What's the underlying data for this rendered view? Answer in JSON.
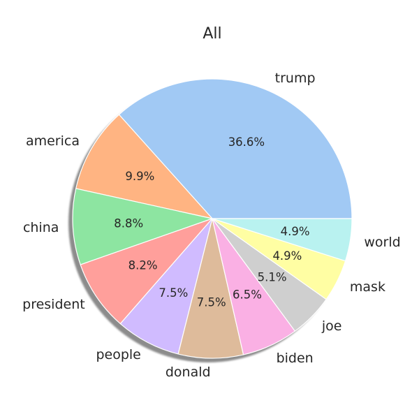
{
  "chart_data": {
    "type": "pie",
    "title": "All",
    "shadow": true,
    "start_angle": "0deg (east), counter-clockwise",
    "slices": [
      {
        "label": "trump",
        "value": 36.6,
        "pct_label": "36.6%",
        "color": "#a1c9f4"
      },
      {
        "label": "america",
        "value": 9.9,
        "pct_label": "9.9%",
        "color": "#ffb482"
      },
      {
        "label": "china",
        "value": 8.8,
        "pct_label": "8.8%",
        "color": "#8de5a1"
      },
      {
        "label": "president",
        "value": 8.2,
        "pct_label": "8.2%",
        "color": "#ff9f9b"
      },
      {
        "label": "people",
        "value": 7.5,
        "pct_label": "7.5%",
        "color": "#d0bbff"
      },
      {
        "label": "donald",
        "value": 7.5,
        "pct_label": "7.5%",
        "color": "#debb9b"
      },
      {
        "label": "biden",
        "value": 6.5,
        "pct_label": "6.5%",
        "color": "#fab0e4"
      },
      {
        "label": "joe",
        "value": 5.1,
        "pct_label": "5.1%",
        "color": "#cfcfcf"
      },
      {
        "label": "mask",
        "value": 4.9,
        "pct_label": "4.9%",
        "color": "#fffea3"
      },
      {
        "label": "world",
        "value": 4.9,
        "pct_label": "4.9%",
        "color": "#b9f2f0"
      }
    ]
  }
}
